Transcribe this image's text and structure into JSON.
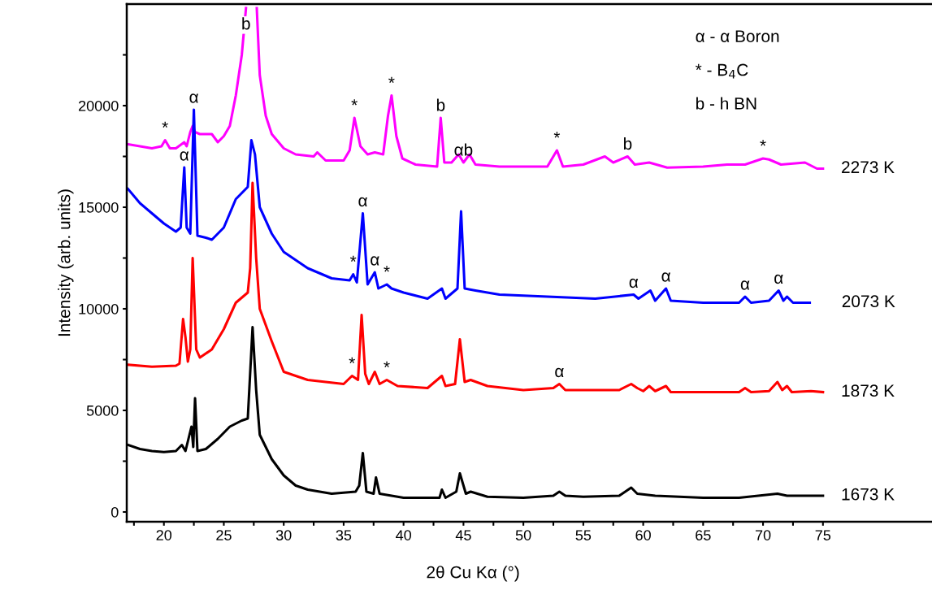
{
  "chart_data": {
    "type": "line",
    "xlabel": "2θ Cu Kα (°)",
    "ylabel": "Intensity (arb. units)",
    "xlim": [
      16.9,
      84.1
    ],
    "ylim": [
      -480,
      25000
    ],
    "xticks": [
      {
        "value": 17.5,
        "label": null
      },
      20,
      {
        "value": 22.5,
        "label": null
      },
      25,
      {
        "value": 27.5,
        "label": null
      },
      30,
      {
        "value": 32.5,
        "label": null
      },
      35,
      {
        "value": 37.5,
        "label": null
      },
      40,
      {
        "value": 42.5,
        "label": null
      },
      45,
      {
        "value": 47.5,
        "label": null
      },
      50,
      {
        "value": 52.5,
        "label": null
      },
      55,
      {
        "value": 57.5,
        "label": null
      },
      60,
      {
        "value": 62.5,
        "label": null
      },
      65,
      {
        "value": 67.5,
        "label": null
      },
      70,
      {
        "value": 72.5,
        "label": null
      },
      75
    ],
    "yticks": [
      0,
      {
        "value": 2500,
        "label": null
      },
      5000,
      {
        "value": 7500,
        "label": null
      },
      10000,
      {
        "value": 12500,
        "label": null
      },
      15000,
      {
        "value": 17500,
        "label": null
      },
      20000,
      {
        "value": 22500,
        "label": null
      }
    ],
    "grid": false,
    "legend": false,
    "marker": "none",
    "line_style": "solid",
    "series": [
      {
        "name": "2273 K",
        "color": "#ff00ff",
        "x": [
          17,
          19,
          19.8,
          20.1,
          20.5,
          21,
          21.7,
          21.9,
          22.2,
          22.4,
          22.6,
          23,
          24,
          24.5,
          25,
          25.5,
          26,
          26.5,
          26.85,
          27,
          27.2,
          27.6,
          27.75,
          28,
          28.5,
          29,
          30,
          31,
          32.5,
          32.8,
          33.5,
          35,
          35.5,
          35.9,
          36.4,
          37,
          37.6,
          38.3,
          38.7,
          39.0,
          39.4,
          39.9,
          41,
          42.8,
          43.1,
          43.4,
          44,
          44.6,
          45,
          45.5,
          46,
          48,
          52,
          52.8,
          53.3,
          55,
          56.8,
          57.5,
          58.7,
          59.3,
          60.5,
          62,
          65,
          67,
          68.5,
          70,
          70.5,
          71.5,
          73.5,
          74.5,
          75
        ],
        "values": [
          18100,
          17900,
          18000,
          18300,
          17900,
          17900,
          18200,
          18000,
          18700,
          19000,
          18700,
          18600,
          18600,
          18200,
          18500,
          19000,
          20500,
          22500,
          24800,
          null,
          null,
          null,
          24800,
          21500,
          19500,
          18600,
          17900,
          17600,
          17500,
          17700,
          17300,
          17300,
          17800,
          19400,
          18000,
          17600,
          17700,
          17600,
          19500,
          20500,
          18500,
          17400,
          17100,
          17000,
          19400,
          17200,
          17200,
          17600,
          17200,
          17600,
          17100,
          17000,
          17000,
          17800,
          17000,
          17100,
          17500,
          17200,
          17500,
          17100,
          17200,
          16950,
          17000,
          17100,
          17100,
          17400,
          17350,
          17100,
          17200,
          16900,
          16900
        ]
      },
      {
        "name": "2073 K",
        "color": "#0000ff",
        "x": [
          17,
          18,
          19,
          20,
          21,
          21.4,
          21.7,
          21.9,
          22.2,
          22.5,
          22.8,
          23.5,
          24,
          25,
          26,
          27,
          27.3,
          27.6,
          28,
          29,
          30,
          32,
          34,
          35.5,
          35.8,
          36.1,
          36.6,
          37,
          37.6,
          37.9,
          38.6,
          39,
          40,
          42,
          43.2,
          43.5,
          44.5,
          44.8,
          45.1,
          46,
          48,
          52,
          56,
          59.2,
          59.6,
          60.6,
          61,
          61.9,
          62.3,
          65,
          68,
          68.5,
          69,
          70.5,
          71.3,
          71.7,
          72.0,
          72.5,
          73.9
        ],
        "values": [
          15900,
          15200,
          14700,
          14200,
          13800,
          14000,
          16960,
          14000,
          13700,
          19800,
          13600,
          13500,
          13400,
          14000,
          15400,
          16000,
          18300,
          17600,
          15000,
          13700,
          12800,
          12000,
          11500,
          11400,
          11700,
          11300,
          14700,
          11200,
          11800,
          11000,
          11200,
          11000,
          10800,
          10500,
          11000,
          10500,
          11000,
          14800,
          11000,
          10900,
          10700,
          10600,
          10500,
          10700,
          10500,
          10900,
          10400,
          11000,
          10400,
          10300,
          10300,
          10600,
          10300,
          10400,
          10900,
          10400,
          10600,
          10300,
          10300
        ]
      },
      {
        "name": "1873 K",
        "color": "#ff0000",
        "x": [
          17,
          19,
          21,
          21.3,
          21.6,
          21.8,
          22.0,
          22.2,
          22.4,
          22.7,
          23,
          24,
          25,
          26,
          27,
          27.2,
          27.4,
          27.7,
          28,
          29,
          30,
          32,
          35,
          35.7,
          36.2,
          36.5,
          36.8,
          37.1,
          37.6,
          38,
          38.6,
          39.5,
          42,
          43.2,
          43.5,
          44.3,
          44.7,
          45.1,
          45.6,
          47,
          50,
          52.5,
          53,
          53.5,
          55,
          58,
          59,
          59.5,
          60,
          60.5,
          61,
          61.9,
          62.3,
          65,
          68,
          68.5,
          69,
          70.5,
          71.2,
          71.6,
          72,
          72.4,
          74,
          75
        ],
        "values": [
          7250,
          7150,
          7200,
          7300,
          9500,
          8600,
          7400,
          8000,
          12500,
          8000,
          7600,
          8000,
          9000,
          10300,
          10800,
          12000,
          16200,
          12500,
          10000,
          8400,
          6900,
          6500,
          6300,
          6700,
          6500,
          9700,
          6800,
          6300,
          6900,
          6300,
          6500,
          6200,
          6100,
          6700,
          6200,
          6300,
          8500,
          6400,
          6500,
          6200,
          6000,
          6100,
          6300,
          6000,
          6000,
          6000,
          6300,
          6100,
          5950,
          6200,
          5950,
          6200,
          5900,
          5900,
          5900,
          6100,
          5900,
          5950,
          6400,
          6000,
          6200,
          5900,
          5950,
          5900
        ]
      },
      {
        "name": "1673 K",
        "color": "#000000",
        "x": [
          17,
          18,
          19,
          20,
          21,
          21.5,
          21.8,
          22.3,
          22.45,
          22.6,
          22.8,
          23.5,
          24.5,
          25.5,
          26.5,
          27.0,
          27.4,
          27.7,
          28,
          29,
          30,
          31,
          32,
          34,
          36,
          36.3,
          36.6,
          36.9,
          37.5,
          37.7,
          38,
          40,
          43,
          43.2,
          43.5,
          44.4,
          44.7,
          45.2,
          45.6,
          47,
          50,
          52.5,
          53,
          53.5,
          55,
          58,
          59.0,
          59.5,
          61,
          65,
          68,
          71.2,
          72,
          75
        ],
        "values": [
          3300,
          3100,
          3000,
          2950,
          3000,
          3300,
          3000,
          4200,
          3200,
          5600,
          3000,
          3100,
          3600,
          4200,
          4500,
          4600,
          9100,
          6000,
          3800,
          2600,
          1800,
          1300,
          1100,
          900,
          1000,
          1300,
          2900,
          1000,
          900,
          1700,
          900,
          700,
          700,
          1100,
          700,
          1000,
          1900,
          900,
          1000,
          750,
          700,
          800,
          1000,
          800,
          750,
          800,
          1200,
          900,
          800,
          700,
          700,
          900,
          800,
          800
        ]
      }
    ],
    "annotations": [
      "α - α Boron",
      "* - B$_{4}$C",
      "b - h BN",
      {
        "text": "*",
        "x": 20.1,
        "y": 18300
      },
      {
        "text": "α",
        "x": 22.5,
        "y": 19800
      },
      {
        "text": "b",
        "x": 26.85,
        "y": 24800
      },
      {
        "text": "*",
        "x": 35.9,
        "y": 19400
      },
      {
        "text": "*",
        "x": 39.0,
        "y": 20500
      },
      {
        "text": "b",
        "x": 43.1,
        "y": 19400
      },
      {
        "text": "αb",
        "x": 45,
        "y": 17200
      },
      {
        "text": "*",
        "x": 52.8,
        "y": 17800
      },
      {
        "text": "b",
        "x": 58.7,
        "y": 17500
      },
      {
        "text": "*",
        "x": 70,
        "y": 17400
      },
      {
        "text": "α",
        "x": 21.7,
        "y": 16960
      },
      {
        "text": "*",
        "x": 35.8,
        "y": 11700
      },
      {
        "text": "α",
        "x": 36.6,
        "y": 14700
      },
      {
        "text": "α",
        "x": 37.6,
        "y": 11800
      },
      {
        "text": "*",
        "x": 38.6,
        "y": 11200
      },
      {
        "text": "α",
        "x": 59.2,
        "y": 10700
      },
      {
        "text": "α",
        "x": 61.9,
        "y": 11000
      },
      {
        "text": "α",
        "x": 68.5,
        "y": 10600
      },
      {
        "text": "α",
        "x": 71.3,
        "y": 10900
      },
      {
        "text": "*",
        "x": 35.7,
        "y": 6700
      },
      {
        "text": "*",
        "x": 38.6,
        "y": 6500
      },
      {
        "text": "α",
        "x": 53,
        "y": 6300
      }
    ]
  }
}
